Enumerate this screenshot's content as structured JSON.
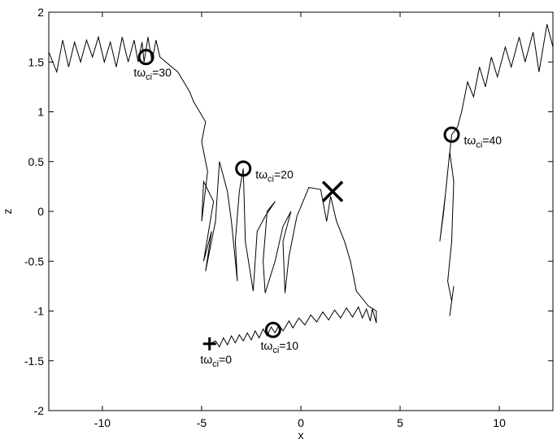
{
  "chart_data": {
    "type": "line",
    "xlabel": "x",
    "ylabel": "z",
    "xlim": [
      -12.7,
      12.7
    ],
    "ylim": [
      -2,
      2
    ],
    "xticks": [
      -10,
      -5,
      0,
      5,
      10
    ],
    "yticks": [
      -2,
      -1.5,
      -1,
      -0.5,
      0,
      0.5,
      1,
      1.5,
      2
    ],
    "color": "#000000",
    "x": [
      -4.6,
      -4.3,
      -4.1,
      -3.9,
      -3.7,
      -3.5,
      -3.3,
      -3.1,
      -2.9,
      -2.7,
      -2.5,
      -2.3,
      -2.1,
      -1.9,
      -1.7,
      -1.5,
      -1.3,
      -1.1,
      -0.9,
      -0.6,
      -0.4,
      -0.1,
      0.2,
      0.5,
      0.8,
      1.1,
      1.4,
      1.7,
      2.0,
      2.3,
      2.6,
      2.9,
      3.1,
      3.3,
      3.5,
      3.6,
      3.8,
      3.8,
      3.4,
      2.8,
      2.5,
      2.2,
      1.8,
      1.5,
      1.3,
      1.0,
      0.4,
      -0.2,
      -0.6,
      -0.8,
      -0.9,
      -0.5,
      -0.9,
      -1.3,
      -1.8,
      -1.9,
      -1.7,
      -1.3,
      -1.8,
      -2.2,
      -2.4,
      -2.8,
      -2.9,
      -3.1,
      -3.3,
      -3.2,
      -3.5,
      -3.7,
      -4.1,
      -4.3,
      -4.6,
      -4.8,
      -4.5,
      -4.9,
      -4.4,
      -4.9,
      -5.0,
      -4.7,
      -5.0,
      -4.8,
      -5.1,
      -5.4,
      -5.6,
      -5.9,
      -6.2,
      -6.5,
      -6.8,
      -7.1,
      -7.3,
      -7.5,
      -7.7,
      -7.9,
      -8.0,
      -8.2,
      -8.4,
      -8.7,
      -9.0,
      -9.3,
      -9.6,
      -9.9,
      -10.2,
      -10.5,
      -10.8,
      -11.1,
      -11.4,
      -11.7,
      -12.0,
      -12.3,
      -12.7,
      null,
      12.7,
      12.4,
      12.0,
      11.7,
      11.3,
      11.0,
      10.6,
      10.3,
      9.9,
      9.6,
      9.3,
      9.0,
      8.7,
      8.4,
      8.1,
      7.9,
      7.6,
      7.4,
      7.2,
      7.0,
      7.3,
      7.5,
      7.7,
      7.6,
      7.4,
      7.6,
      7.5,
      7.7
    ],
    "y": [
      -1.33,
      -1.3,
      -1.36,
      -1.27,
      -1.34,
      -1.25,
      -1.32,
      -1.24,
      -1.3,
      -1.22,
      -1.29,
      -1.2,
      -1.27,
      -1.18,
      -1.25,
      -1.16,
      -1.22,
      -1.14,
      -1.2,
      -1.1,
      -1.17,
      -1.07,
      -1.14,
      -1.04,
      -1.11,
      -1.01,
      -1.09,
      -0.99,
      -1.07,
      -0.97,
      -1.06,
      -0.96,
      -1.07,
      -0.98,
      -1.1,
      -0.98,
      -1.12,
      -1.0,
      -0.95,
      -0.8,
      -0.5,
      -0.3,
      -0.1,
      0.15,
      -0.1,
      0.22,
      0.24,
      -0.05,
      -0.45,
      -0.82,
      -0.3,
      0.0,
      -0.15,
      -0.5,
      -0.82,
      -0.5,
      0.0,
      0.1,
      -0.05,
      -0.2,
      -0.8,
      -0.3,
      0.43,
      0.2,
      -0.3,
      -0.7,
      -0.1,
      0.2,
      0.5,
      -0.1,
      -0.4,
      -0.6,
      -0.2,
      -0.5,
      0.1,
      0.3,
      -0.1,
      0.4,
      0.7,
      0.9,
      1.0,
      1.1,
      1.2,
      1.3,
      1.4,
      1.45,
      1.5,
      1.55,
      1.72,
      1.5,
      1.75,
      1.5,
      1.7,
      1.5,
      1.72,
      1.5,
      1.75,
      1.45,
      1.7,
      1.5,
      1.75,
      1.55,
      1.72,
      1.5,
      1.7,
      1.45,
      1.72,
      1.4,
      1.6,
      null,
      1.65,
      1.88,
      1.4,
      1.8,
      1.5,
      1.75,
      1.45,
      1.65,
      1.35,
      1.55,
      1.25,
      1.45,
      1.15,
      1.3,
      1.0,
      0.85,
      0.77,
      0.4,
      0.0,
      -0.3,
      0.2,
      0.6,
      0.3,
      -0.3,
      -0.7,
      -0.9,
      -1.05,
      -0.75
    ],
    "markers": [
      {
        "shape": "plus",
        "x": -4.6,
        "y": -1.33,
        "label_side": "below",
        "label": {
          "main": "tω",
          "sub": "ci",
          "tail": "=0"
        }
      },
      {
        "shape": "circle",
        "x": -1.4,
        "y": -1.19,
        "label_side": "below",
        "label": {
          "main": "tω",
          "sub": "ci",
          "tail": "=10"
        }
      },
      {
        "shape": "circle",
        "x": -2.9,
        "y": 0.43,
        "label_side": "right",
        "label": {
          "main": "tω",
          "sub": "ci",
          "tail": "=20"
        }
      },
      {
        "shape": "circle",
        "x": -7.8,
        "y": 1.55,
        "label_side": "below",
        "label": {
          "main": "tω",
          "sub": "ci",
          "tail": "=30"
        }
      },
      {
        "shape": "circle",
        "x": 7.6,
        "y": 0.77,
        "label_side": "right",
        "label": {
          "main": "tω",
          "sub": "ci",
          "tail": "=40"
        }
      },
      {
        "shape": "cross",
        "x": 1.6,
        "y": 0.2
      }
    ]
  }
}
